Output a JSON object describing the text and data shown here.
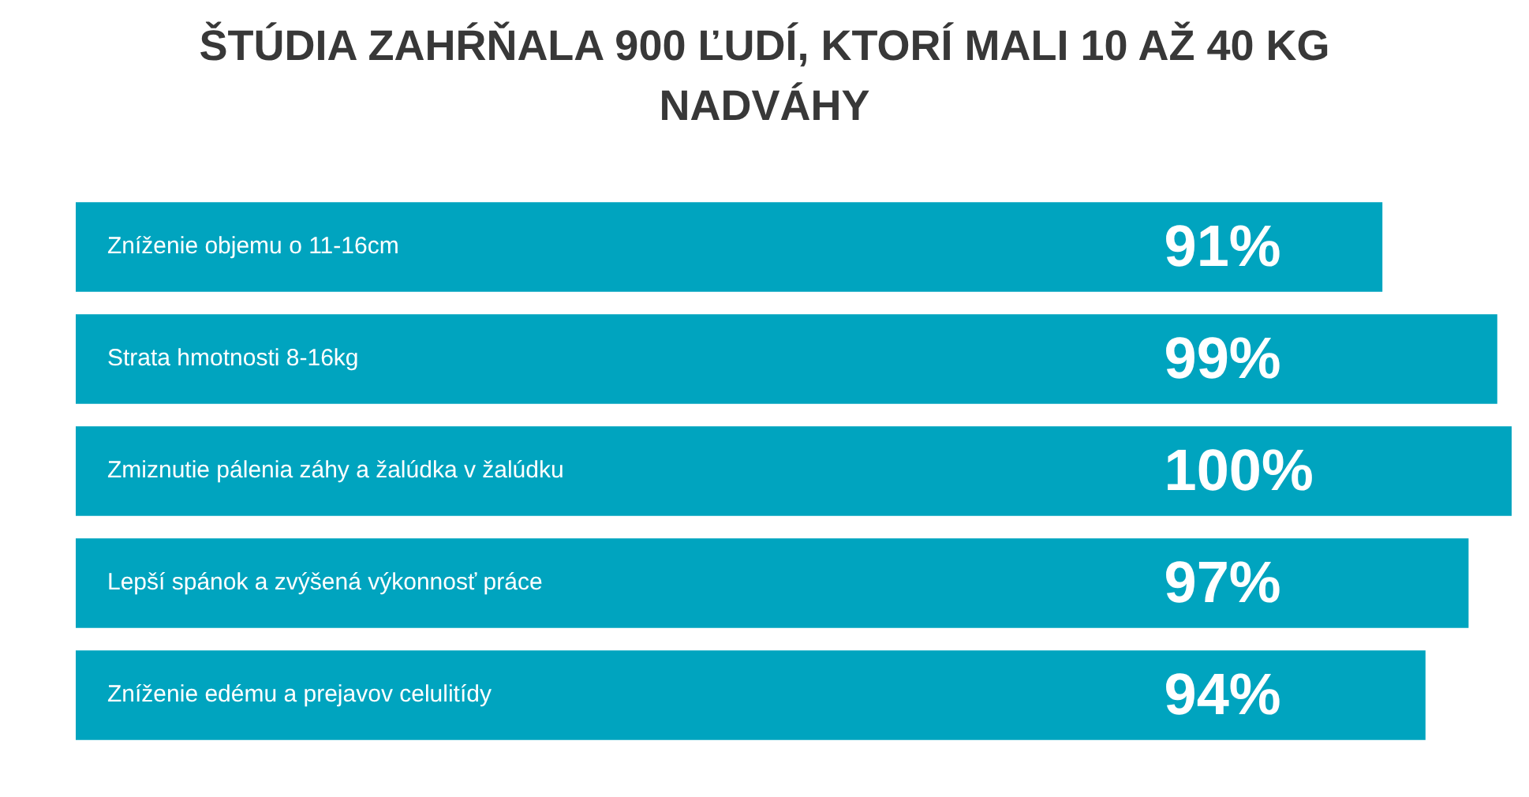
{
  "chart_data": {
    "type": "bar",
    "orientation": "horizontal",
    "title": "ŠTÚDIA ZAHŔŇALA 900 ĽUDÍ, KTORÍ MALI 10 AŽ 40 KG NADVÁHY",
    "categories": [
      "Zníženie objemu o 11-16cm",
      "Strata hmotnosti 8-16kg",
      "Zmiznutie pálenia záhy a žalúdka v žalúdku",
      "Lepší spánok a zvýšená výkonnosť práce",
      "Zníženie edému a prejavov celulitídy"
    ],
    "values": [
      91,
      99,
      100,
      97,
      94
    ],
    "color": "#00a4bf",
    "xlim": [
      0,
      100
    ],
    "value_labels": [
      "91%",
      "99%",
      "100%",
      "97%",
      "94%"
    ],
    "tick_labels": "y"
  }
}
